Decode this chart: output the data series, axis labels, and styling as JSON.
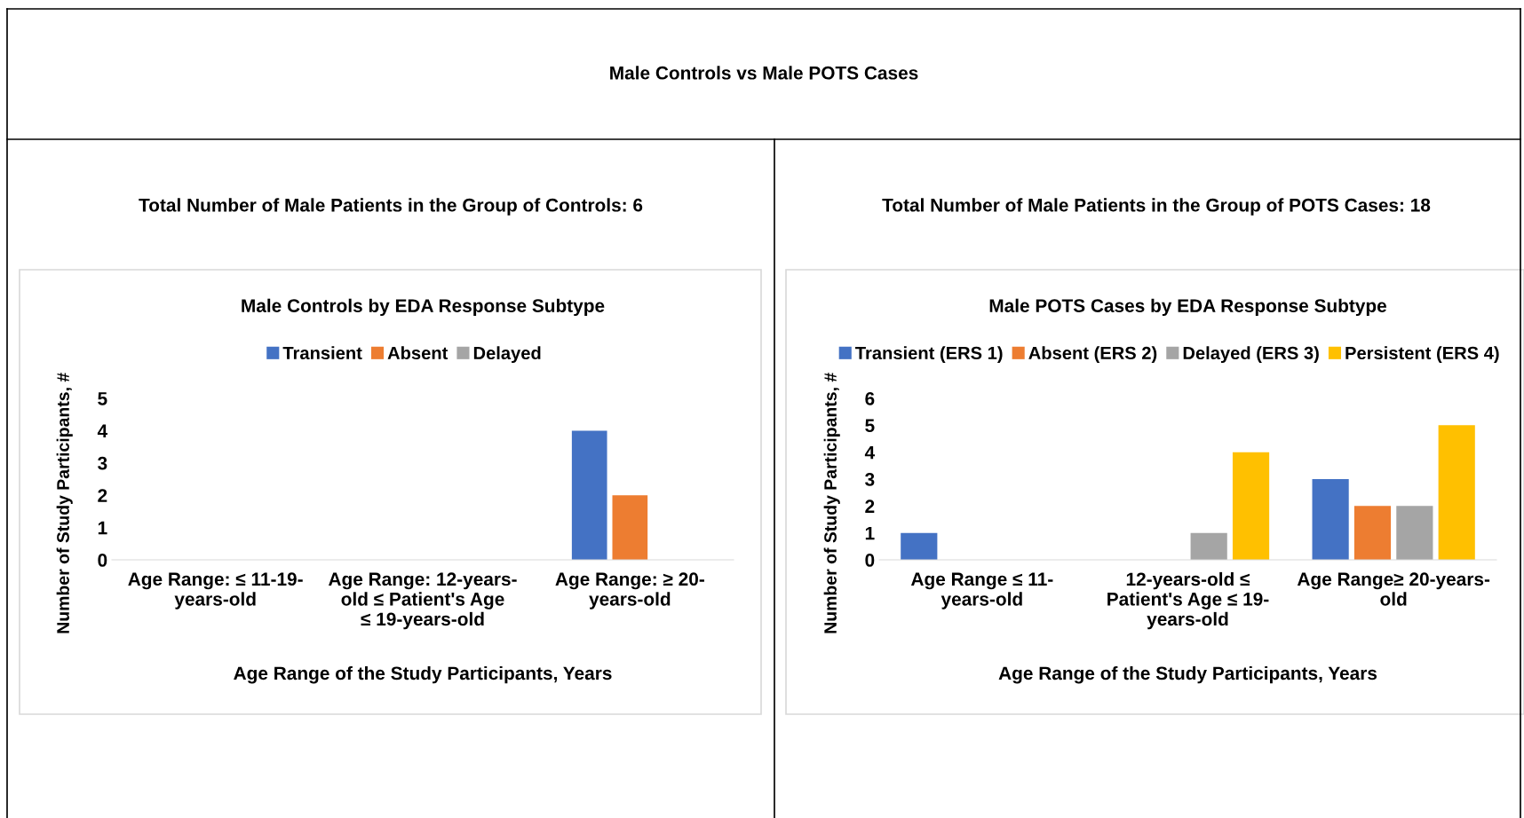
{
  "chart_data": [
    {
      "type": "bar",
      "title": "Male Controls by EDA Response Subtype",
      "subtitle": "Total Number of Male Patients in the Group of Controls: 6",
      "annotations": [
        "Male Controls vs Male POTS Cases"
      ],
      "xlabel": "Age Range of the Study Participants, Years",
      "ylabel": "Number of Study Participants, #",
      "categories": [
        "Age Range: ≤ 11-19-years-old",
        "Age Range: 12-years-old ≤ Patient's Age ≤ 19-years-old",
        "Age Range: ≥ 20-years-old"
      ],
      "series": [
        {
          "name": "Transient",
          "color": "#4472c4",
          "values": [
            0,
            0,
            4
          ]
        },
        {
          "name": "Absent",
          "color": "#ed7d31",
          "values": [
            0,
            0,
            2
          ]
        },
        {
          "name": "Delayed",
          "color": "#a5a5a5",
          "values": [
            0,
            0,
            0
          ]
        }
      ],
      "ylim": [
        0,
        5
      ],
      "yticks": [
        0,
        1,
        2,
        3,
        4,
        5
      ],
      "grid": false,
      "legend": "top"
    },
    {
      "type": "bar",
      "title": "Male POTS Cases by EDA Response Subtype",
      "subtitle": "Total Number of Male Patients in the Group of POTS Cases: 18",
      "xlabel": "Age Range of the Study Participants, Years",
      "ylabel": "Number of Study Participants, #",
      "categories": [
        "Age Range ≤ 11-years-old",
        "12-years-old ≤ Patient's Age ≤ 19-years-old",
        "Age Range≥ 20-years-old"
      ],
      "series": [
        {
          "name": "Transient (ERS 1)",
          "color": "#4472c4",
          "values": [
            1,
            0,
            3
          ]
        },
        {
          "name": "Absent (ERS 2)",
          "color": "#ed7d31",
          "values": [
            0,
            0,
            2
          ]
        },
        {
          "name": "Delayed (ERS 3)",
          "color": "#a5a5a5",
          "values": [
            0,
            1,
            2
          ]
        },
        {
          "name": "Persistent (ERS 4)",
          "color": "#ffc000",
          "values": [
            0,
            4,
            5
          ]
        }
      ],
      "ylim": [
        0,
        6
      ],
      "yticks": [
        0,
        1,
        2,
        3,
        4,
        5,
        6
      ],
      "grid": false,
      "legend": "top"
    }
  ]
}
